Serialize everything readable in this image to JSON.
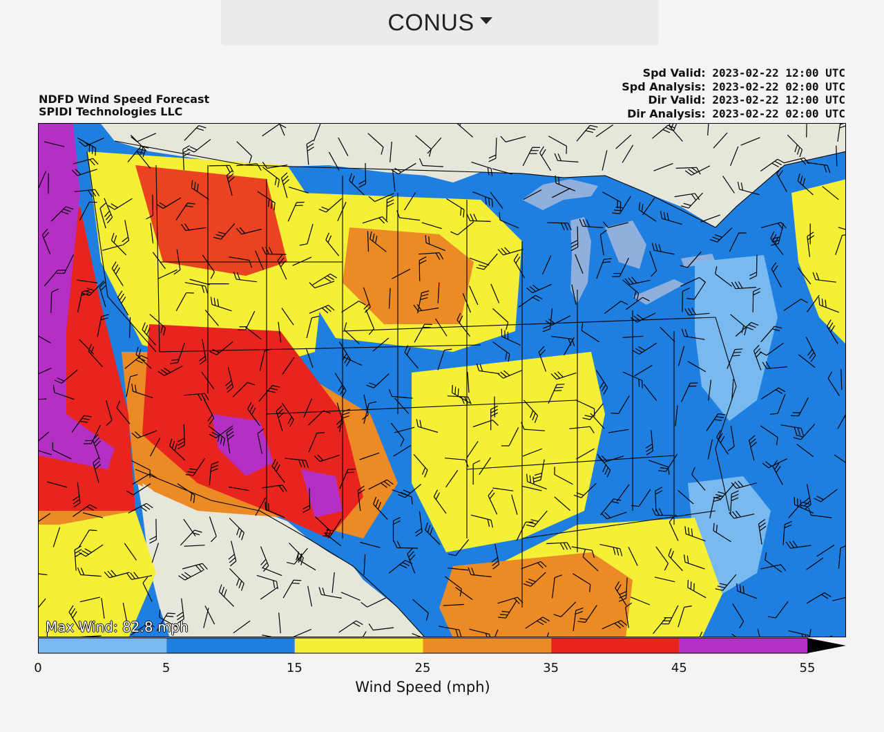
{
  "header": {
    "region": "CONUS",
    "dropdown_icon": "caret-down-icon"
  },
  "map": {
    "title_line1": "NDFD Wind Speed Forecast",
    "title_line2": "SPIDI Technologies LLC",
    "spd_valid_label": "Spd Valid:",
    "spd_valid": "2023-02-22 12:00 UTC",
    "spd_analysis_label": "Spd Analysis:",
    "spd_analysis": "2023-02-22 02:00 UTC",
    "dir_valid_label": "Dir Valid:",
    "dir_valid": "2023-02-22 12:00 UTC",
    "dir_analysis_label": "Dir Analysis:",
    "dir_analysis": "2023-02-22 02:00 UTC",
    "max_wind": "Max Wind: 82.8 mph"
  },
  "colorbar": {
    "title": "Wind Speed (mph)",
    "ticks": [
      "0",
      "5",
      "15",
      "25",
      "35",
      "45",
      "55"
    ],
    "bins": [
      {
        "from": 0,
        "to": 5,
        "color": "#78b9f0"
      },
      {
        "from": 5,
        "to": 15,
        "color": "#1f7fe0"
      },
      {
        "from": 15,
        "to": 25,
        "color": "#f5ef36"
      },
      {
        "from": 25,
        "to": 35,
        "color": "#ec8a26"
      },
      {
        "from": 35,
        "to": 45,
        "color": "#e8241e"
      },
      {
        "from": 45,
        "to": 55,
        "color": "#b52fc5"
      }
    ],
    "extend_color": "#000000"
  },
  "colors": {
    "land_outside": "#e6e6da",
    "water": "#8fb0dc"
  }
}
